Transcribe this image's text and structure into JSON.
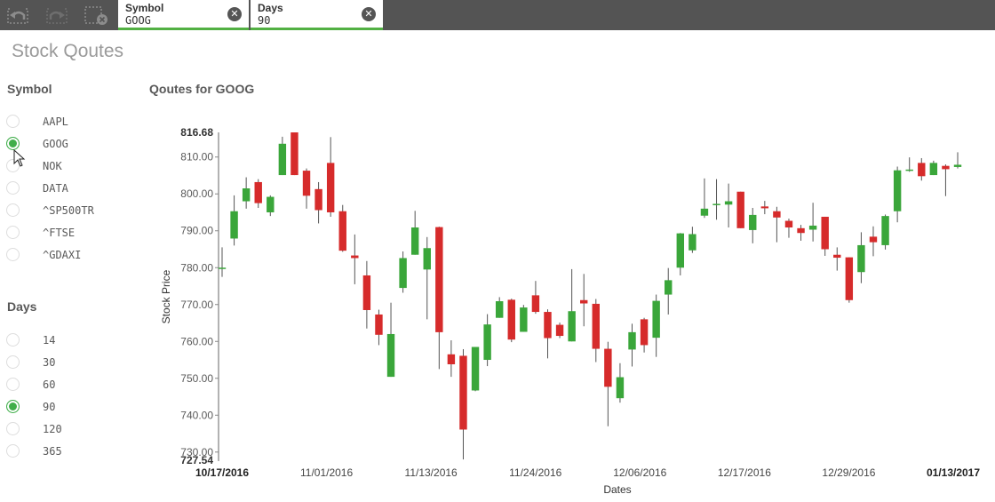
{
  "toolbar": {
    "icons": [
      "smart-search-back-icon",
      "forward-step-icon",
      "clear-selections-icon"
    ],
    "filters": [
      {
        "label": "Symbol",
        "value": "GOOG"
      },
      {
        "label": "Days",
        "value": "90"
      }
    ],
    "accent": "#52b043"
  },
  "sheet": {
    "title": "Stock Qoutes"
  },
  "symbol_panel": {
    "title": "Symbol",
    "options": [
      "AAPL",
      "GOOG",
      "NOK",
      "DATA",
      "^SP500TR",
      "^FTSE",
      "^GDAXI"
    ],
    "selected": "GOOG"
  },
  "days_panel": {
    "title": "Days",
    "options": [
      "14",
      "30",
      "60",
      "90",
      "120",
      "365"
    ],
    "selected": "90"
  },
  "chart": {
    "title": "Qoutes for GOOG"
  },
  "chart_data": {
    "type": "candlestick",
    "title": "Qoutes for GOOG",
    "xlabel": "Dates",
    "ylabel": "Stock Price",
    "ylim": [
      727.54,
      816.68
    ],
    "yticks": [
      730,
      740,
      750,
      760,
      770,
      780,
      790,
      800,
      810
    ],
    "ytick_labels": [
      "730.00",
      "740.00",
      "750.00",
      "760.00",
      "770.00",
      "780.00",
      "790.00",
      "800.00",
      "810.00"
    ],
    "ymin_label": "727.54",
    "ymax_label": "816.68",
    "x_labels": [
      "10/17/2016",
      "11/01/2016",
      "11/13/2016",
      "11/24/2016",
      "12/06/2016",
      "12/17/2016",
      "12/29/2016",
      "01/13/2017"
    ],
    "x_label_bold": [
      "10/17/2016",
      "01/13/2017"
    ],
    "colors": {
      "up": "#3aa63a",
      "down": "#d62b2b",
      "wick": "#555555"
    },
    "candles": [
      {
        "open": 779.8,
        "close": 780.0,
        "high": 785.5,
        "low": 777.5
      },
      {
        "open": 787.9,
        "close": 795.3,
        "high": 799.6,
        "low": 786.0
      },
      {
        "open": 798.0,
        "close": 801.5,
        "high": 804.5,
        "low": 796.0
      },
      {
        "open": 803.2,
        "close": 797.5,
        "high": 804.0,
        "low": 796.2
      },
      {
        "open": 795.0,
        "close": 799.2,
        "high": 799.6,
        "low": 794.0
      },
      {
        "open": 805.1,
        "close": 813.6,
        "high": 815.5,
        "low": 805.1
      },
      {
        "open": 816.68,
        "close": 805.1,
        "high": 816.68,
        "low": 805.1
      },
      {
        "open": 806.3,
        "close": 799.5,
        "high": 806.9,
        "low": 796.0
      },
      {
        "open": 801.3,
        "close": 795.6,
        "high": 803.2,
        "low": 792.0
      },
      {
        "open": 808.4,
        "close": 795.0,
        "high": 815.4,
        "low": 793.8
      },
      {
        "open": 795.3,
        "close": 784.6,
        "high": 797.0,
        "low": 784.3
      },
      {
        "open": 783.3,
        "close": 782.6,
        "high": 789.0,
        "low": 775.5
      },
      {
        "open": 777.9,
        "close": 768.5,
        "high": 781.8,
        "low": 763.5
      },
      {
        "open": 767.3,
        "close": 761.8,
        "high": 768.6,
        "low": 759.0
      },
      {
        "open": 750.4,
        "close": 762.0,
        "high": 770.5,
        "low": 750.4
      },
      {
        "open": 774.5,
        "close": 782.6,
        "high": 784.4,
        "low": 773.2
      },
      {
        "open": 783.5,
        "close": 790.9,
        "high": 795.4,
        "low": 783.5
      },
      {
        "open": 779.5,
        "close": 785.3,
        "high": 788.3,
        "low": 766.0
      },
      {
        "open": 791.0,
        "close": 762.5,
        "high": 791.1,
        "low": 752.5
      },
      {
        "open": 756.5,
        "close": 753.8,
        "high": 760.3,
        "low": 750.4
      },
      {
        "open": 756.1,
        "close": 736.1,
        "high": 757.9,
        "low": 728.0
      },
      {
        "open": 746.7,
        "close": 758.5,
        "high": 758.5,
        "low": 746.5
      },
      {
        "open": 755.0,
        "close": 764.6,
        "high": 767.4,
        "low": 753.3
      },
      {
        "open": 766.4,
        "close": 770.9,
        "high": 772.0,
        "low": 766.4
      },
      {
        "open": 771.3,
        "close": 760.5,
        "high": 771.6,
        "low": 759.8
      },
      {
        "open": 762.6,
        "close": 769.2,
        "high": 769.9,
        "low": 762.6
      },
      {
        "open": 772.5,
        "close": 768.0,
        "high": 776.4,
        "low": 767.5
      },
      {
        "open": 768.0,
        "close": 760.9,
        "high": 768.7,
        "low": 755.4
      },
      {
        "open": 764.5,
        "close": 761.5,
        "high": 765.1,
        "low": 760.9
      },
      {
        "open": 760.0,
        "close": 768.2,
        "high": 779.6,
        "low": 760.0
      },
      {
        "open": 771.2,
        "close": 770.3,
        "high": 778.3,
        "low": 764.1
      },
      {
        "open": 770.2,
        "close": 758.0,
        "high": 771.5,
        "low": 754.4
      },
      {
        "open": 758.0,
        "close": 747.7,
        "high": 759.9,
        "low": 737.0
      },
      {
        "open": 744.6,
        "close": 750.3,
        "high": 754.1,
        "low": 743.4
      },
      {
        "open": 757.8,
        "close": 762.5,
        "high": 764.8,
        "low": 753.2
      },
      {
        "open": 766.0,
        "close": 759.0,
        "high": 766.4,
        "low": 757.0
      },
      {
        "open": 761.0,
        "close": 771.0,
        "high": 772.7,
        "low": 755.8
      },
      {
        "open": 772.7,
        "close": 776.6,
        "high": 779.9,
        "low": 767.3
      },
      {
        "open": 780.0,
        "close": 789.3,
        "high": 789.4,
        "low": 777.9
      },
      {
        "open": 784.7,
        "close": 789.1,
        "high": 791.1,
        "low": 784.0
      },
      {
        "open": 794.1,
        "close": 796.0,
        "high": 804.2,
        "low": 793.5
      },
      {
        "open": 797.1,
        "close": 797.3,
        "high": 804.0,
        "low": 793.0
      },
      {
        "open": 797.1,
        "close": 798.0,
        "high": 802.8,
        "low": 790.9
      },
      {
        "open": 800.6,
        "close": 790.7,
        "high": 800.6,
        "low": 790.7
      },
      {
        "open": 790.2,
        "close": 794.3,
        "high": 796.2,
        "low": 786.6
      },
      {
        "open": 796.6,
        "close": 796.1,
        "high": 798.1,
        "low": 794.5
      },
      {
        "open": 795.3,
        "close": 793.6,
        "high": 796.5,
        "low": 786.9
      },
      {
        "open": 792.7,
        "close": 790.9,
        "high": 793.3,
        "low": 788.1
      },
      {
        "open": 790.7,
        "close": 789.4,
        "high": 791.6,
        "low": 787.3
      },
      {
        "open": 790.3,
        "close": 791.4,
        "high": 797.6,
        "low": 787.1
      },
      {
        "open": 793.8,
        "close": 785.0,
        "high": 793.8,
        "low": 783.2
      },
      {
        "open": 783.5,
        "close": 782.7,
        "high": 785.5,
        "low": 779.2
      },
      {
        "open": 782.8,
        "close": 771.2,
        "high": 782.8,
        "low": 770.5
      },
      {
        "open": 778.8,
        "close": 786.1,
        "high": 789.6,
        "low": 775.8
      },
      {
        "open": 788.4,
        "close": 786.9,
        "high": 791.2,
        "low": 783.1
      },
      {
        "open": 786.1,
        "close": 794.0,
        "high": 794.4,
        "low": 784.9
      },
      {
        "open": 795.3,
        "close": 806.4,
        "high": 807.4,
        "low": 792.3
      },
      {
        "open": 806.4,
        "close": 806.6,
        "high": 809.9,
        "low": 806.0
      },
      {
        "open": 808.4,
        "close": 804.8,
        "high": 809.7,
        "low": 803.6
      },
      {
        "open": 805.1,
        "close": 808.4,
        "high": 809.0,
        "low": 805.1
      },
      {
        "open": 807.6,
        "close": 806.7,
        "high": 808.0,
        "low": 799.4
      },
      {
        "open": 807.3,
        "close": 807.9,
        "high": 811.3,
        "low": 806.9
      }
    ]
  }
}
